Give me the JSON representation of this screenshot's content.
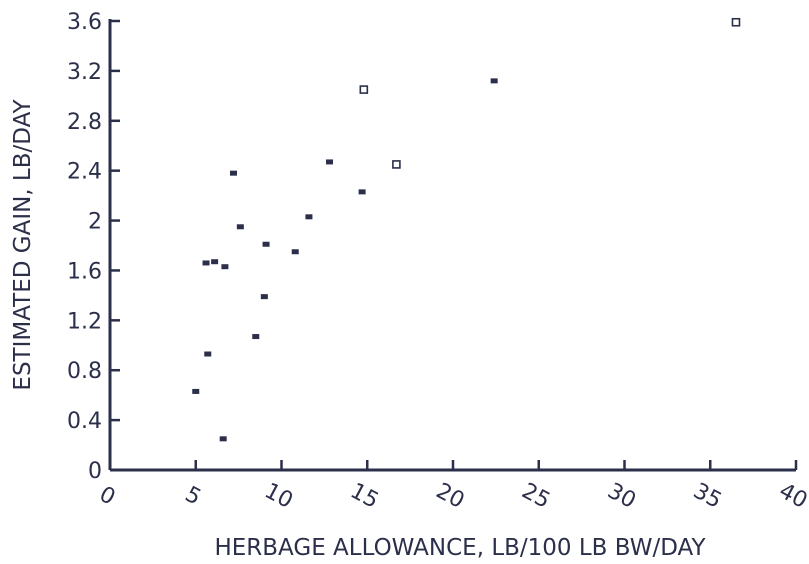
{
  "colors": {
    "ink": "#2b2f4a",
    "background": "#ffffff"
  },
  "chart_data": {
    "type": "scatter",
    "xlabel": "HERBAGE ALLOWANCE, LB/100 LB BW/DAY",
    "ylabel": "ESTIMATED GAIN, LB/DAY",
    "xlim": [
      0,
      40
    ],
    "ylim": [
      0,
      3.6
    ],
    "x_ticks": [
      0,
      5,
      10,
      15,
      20,
      25,
      30,
      35,
      40
    ],
    "x_tick_labels": [
      "0",
      "5",
      "10",
      "15",
      "20",
      "25",
      "30",
      "35",
      "40"
    ],
    "y_ticks": [
      0,
      0.4,
      0.8,
      1.2,
      1.6,
      2,
      2.4,
      2.8,
      3.2,
      3.6
    ],
    "y_tick_labels": [
      "0",
      "0.4",
      "0.8",
      "1.2",
      "1.6",
      "2",
      "2.4",
      "2.8",
      "3.2",
      "3.6"
    ],
    "grid": false,
    "series": [
      {
        "marker": "filled-square",
        "points": [
          {
            "x": 5.0,
            "y": 0.63
          },
          {
            "x": 6.6,
            "y": 0.25
          },
          {
            "x": 5.7,
            "y": 0.93
          },
          {
            "x": 5.6,
            "y": 1.66
          },
          {
            "x": 6.1,
            "y": 1.67
          },
          {
            "x": 6.7,
            "y": 1.63
          },
          {
            "x": 7.2,
            "y": 2.38
          },
          {
            "x": 7.6,
            "y": 1.95
          },
          {
            "x": 8.5,
            "y": 1.07
          },
          {
            "x": 9.0,
            "y": 1.39
          },
          {
            "x": 9.1,
            "y": 1.81
          },
          {
            "x": 10.8,
            "y": 1.75
          },
          {
            "x": 11.6,
            "y": 2.03
          },
          {
            "x": 12.8,
            "y": 2.47
          },
          {
            "x": 14.7,
            "y": 2.23
          },
          {
            "x": 22.4,
            "y": 3.12
          }
        ]
      },
      {
        "marker": "open-square",
        "points": [
          {
            "x": 14.8,
            "y": 3.05
          },
          {
            "x": 16.7,
            "y": 2.45
          },
          {
            "x": 36.5,
            "y": 3.59
          }
        ]
      }
    ]
  }
}
